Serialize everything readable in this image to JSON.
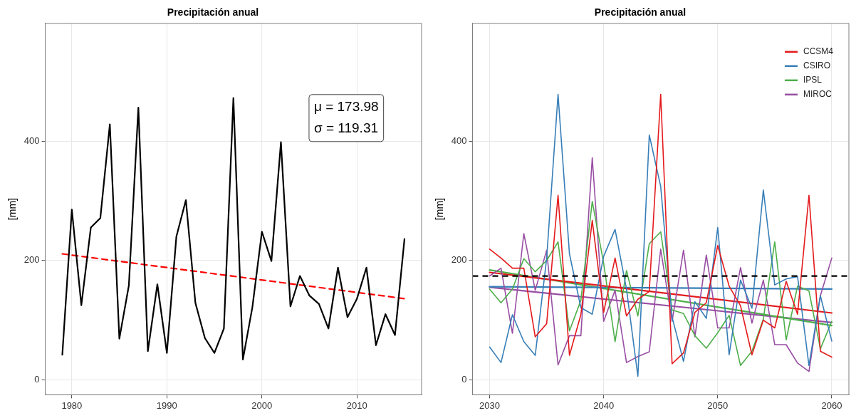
{
  "chart_data": [
    {
      "type": "line",
      "title": "Precipitación anual",
      "ylabel": "[mm]",
      "x": [
        1979,
        1980,
        1981,
        1982,
        1983,
        1984,
        1985,
        1986,
        1987,
        1988,
        1989,
        1990,
        1991,
        1992,
        1993,
        1994,
        1995,
        1996,
        1997,
        1998,
        1999,
        2000,
        2001,
        2002,
        2003,
        2004,
        2005,
        2006,
        2007,
        2008,
        2009,
        2010,
        2011,
        2012,
        2013,
        2014,
        2015
      ],
      "series": [
        {
          "color": "#000000",
          "values": [
            42,
            285,
            125,
            255,
            271,
            428,
            69,
            158,
            456,
            48,
            160,
            45,
            240,
            301,
            129,
            70,
            45,
            86,
            472,
            34,
            122,
            248,
            199,
            398,
            123,
            174,
            141,
            127,
            86,
            188,
            105,
            136,
            188,
            58,
            110,
            75,
            236
          ]
        },
        {
          "type": "line",
          "color": "#ff0000",
          "line_style": "dashed",
          "x": [
            1979,
            2015
          ],
          "values": [
            211,
            136
          ]
        }
      ],
      "annotations": [
        "μ = 173.98",
        "σ = 119.31"
      ],
      "xlim": [
        1977.2,
        2016.8
      ],
      "xticks": [
        1980,
        1990,
        2000,
        2010
      ],
      "ylim": [
        -25,
        597
      ],
      "yticks": [
        0,
        200,
        400
      ],
      "grid": true,
      "legend": false
    },
    {
      "type": "line",
      "title": "Precipitación anual",
      "ylabel": "[mm]",
      "x": [
        2030,
        2031,
        2032,
        2033,
        2034,
        2035,
        2036,
        2037,
        2038,
        2039,
        2040,
        2041,
        2042,
        2043,
        2044,
        2045,
        2046,
        2047,
        2048,
        2049,
        2050,
        2051,
        2052,
        2053,
        2054,
        2055,
        2056,
        2057,
        2058,
        2059,
        2060
      ],
      "series": [
        {
          "name": "CCSM4",
          "color": "#e41a1c",
          "values": [
            219,
            204,
            187,
            187,
            72,
            94,
            309,
            41,
            109,
            267,
            113,
            204,
            107,
            135,
            148,
            478,
            27,
            45,
            113,
            129,
            225,
            157,
            124,
            42,
            100,
            87,
            165,
            110,
            309,
            48,
            38
          ]
        },
        {
          "name": "CSIRO",
          "color": "#377eb8",
          "values": [
            55,
            29,
            109,
            64,
            41,
            203,
            478,
            211,
            121,
            110,
            207,
            252,
            152,
            6,
            410,
            324,
            105,
            31,
            131,
            103,
            255,
            42,
            167,
            120,
            318,
            159,
            169,
            173,
            24,
            141,
            65
          ]
        },
        {
          "name": "IPSL",
          "color": "#4daf4a",
          "values": [
            152,
            129,
            152,
            203,
            181,
            200,
            231,
            82,
            133,
            299,
            195,
            64,
            183,
            107,
            228,
            248,
            117,
            111,
            74,
            53,
            79,
            108,
            24,
            48,
            102,
            231,
            67,
            157,
            149,
            52,
            98
          ]
        },
        {
          "name": "MIROC",
          "color": "#984ea3",
          "values": [
            174,
            187,
            78,
            245,
            150,
            217,
            25,
            74,
            74,
            372,
            98,
            150,
            29,
            39,
            47,
            219,
            98,
            217,
            72,
            209,
            87,
            87,
            188,
            95,
            167,
            59,
            59,
            28,
            14,
            141,
            204
          ]
        },
        {
          "type": "line",
          "color": "#e41a1c",
          "x": [
            2030,
            2060
          ],
          "values": [
            180,
            112
          ]
        },
        {
          "type": "line",
          "color": "#377eb8",
          "x": [
            2030,
            2060
          ],
          "values": [
            156,
            152
          ]
        },
        {
          "type": "line",
          "color": "#4daf4a",
          "x": [
            2030,
            2060
          ],
          "values": [
            184,
            91
          ]
        },
        {
          "type": "line",
          "color": "#984ea3",
          "x": [
            2030,
            2060
          ],
          "values": [
            155,
            96
          ]
        }
      ],
      "ref_lines": [
        {
          "axis": "y",
          "value": 173.98,
          "color": "#000000",
          "line_style": "dashed"
        }
      ],
      "xlim": [
        2028.5,
        2061.5
      ],
      "xticks": [
        2030,
        2040,
        2050,
        2060
      ],
      "ylim": [
        -25,
        597
      ],
      "yticks": [
        0,
        200,
        400
      ],
      "grid": true,
      "legend": "top right"
    }
  ]
}
